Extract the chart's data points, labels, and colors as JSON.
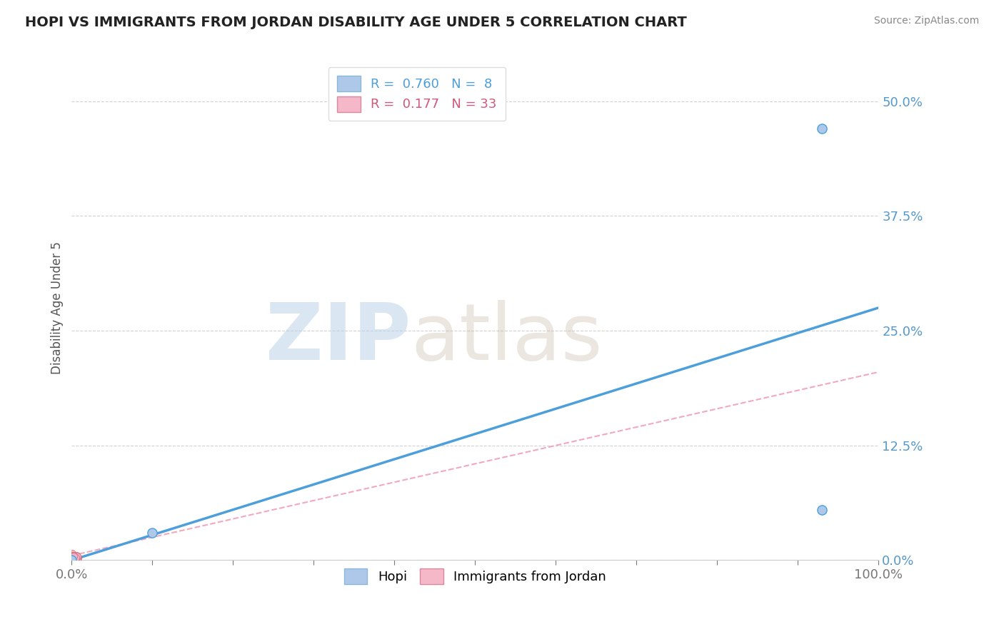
{
  "title": "HOPI VS IMMIGRANTS FROM JORDAN DISABILITY AGE UNDER 5 CORRELATION CHART",
  "source": "Source: ZipAtlas.com",
  "ylabel": "Disability Age Under 5",
  "ytick_values": [
    0.0,
    0.125,
    0.25,
    0.375,
    0.5
  ],
  "xlim": [
    0.0,
    1.0
  ],
  "ylim": [
    0.0,
    0.55
  ],
  "legend_hopi_R": "0.760",
  "legend_hopi_N": "8",
  "legend_jordan_R": "0.177",
  "legend_jordan_N": "33",
  "hopi_fill_color": "#adc8e8",
  "jordan_fill_color": "#f5b8c8",
  "hopi_line_color": "#4d9fdb",
  "jordan_line_color": "#f0a0b8",
  "watermark_ZIP": "ZIP",
  "watermark_atlas": "atlas",
  "hopi_scatter_x": [
    0.0,
    0.1,
    0.93,
    0.93
  ],
  "hopi_scatter_y": [
    0.0,
    0.03,
    0.055,
    0.47
  ],
  "hopi_line_x0": 0.0,
  "hopi_line_x1": 1.0,
  "hopi_line_y0": 0.0,
  "hopi_line_y1": 0.275,
  "jordan_line_x0": 0.0,
  "jordan_line_x1": 1.0,
  "jordan_line_y0": 0.005,
  "jordan_line_y1": 0.205,
  "jordan_cluster_x": [
    0.0,
    0.002,
    0.004,
    0.006,
    0.008,
    0.001,
    0.003,
    0.005,
    0.007,
    0.0,
    0.002,
    0.004,
    0.006,
    0.001,
    0.003,
    0.005,
    0.007,
    0.0,
    0.002,
    0.004,
    0.006,
    0.001,
    0.003,
    0.005,
    0.007,
    0.0,
    0.002,
    0.004,
    0.001,
    0.003,
    0.005,
    0.0,
    0.002
  ],
  "jordan_cluster_y": [
    0.0,
    0.002,
    0.004,
    0.001,
    0.003,
    0.005,
    0.001,
    0.003,
    0.002,
    0.006,
    0.001,
    0.003,
    0.005,
    0.007,
    0.002,
    0.004,
    0.001,
    0.003,
    0.005,
    0.002,
    0.004,
    0.001,
    0.003,
    0.002,
    0.004,
    0.005,
    0.003,
    0.001,
    0.004,
    0.002,
    0.003,
    0.002,
    0.004
  ],
  "background_color": "#ffffff",
  "plot_bg_color": "#ffffff",
  "grid_color": "#cccccc",
  "title_fontsize": 14,
  "source_fontsize": 10,
  "tick_fontsize": 13,
  "ylabel_fontsize": 12
}
